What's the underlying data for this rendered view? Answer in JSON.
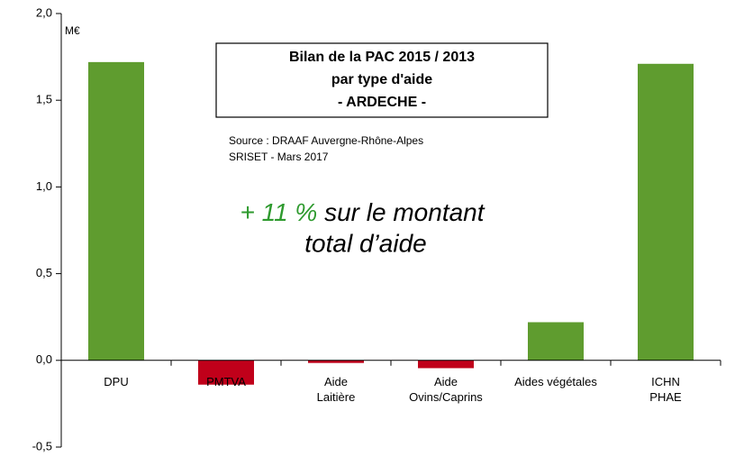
{
  "chart_data": {
    "type": "bar",
    "title_lines": [
      "Bilan de la PAC 2015 / 2013",
      "par type d'aide",
      "- ARDECHE -"
    ],
    "source_lines": [
      "Source : DRAAF Auvergne-Rhône-Alpes",
      "SRISET - Mars 2017"
    ],
    "annotation": {
      "highlight": "+ 11 %",
      "rest": "sur le montant",
      "line2": "total d’aide"
    },
    "y_unit": "M€",
    "categories": [
      "DPU",
      "PMTVA",
      "Aide\nLaitière",
      "Aide\nOvins/Caprins",
      "Aides végétales",
      "ICHN\nPHAE"
    ],
    "values": [
      1.72,
      -0.14,
      -0.015,
      -0.045,
      0.22,
      1.71
    ],
    "colors": [
      "#5f9c2f",
      "#c0001a",
      "#c0001a",
      "#c0001a",
      "#5f9c2f",
      "#5f9c2f"
    ],
    "ylim": [
      -0.5,
      2.0
    ],
    "yticks": [
      {
        "value": -0.5,
        "label": "-0,5"
      },
      {
        "value": 0,
        "label": "0,0"
      },
      {
        "value": 0.5,
        "label": "0,5"
      },
      {
        "value": 1.0,
        "label": "1,0"
      },
      {
        "value": 1.5,
        "label": "1,5"
      },
      {
        "value": 2.0,
        "label": "2,0"
      }
    ]
  }
}
